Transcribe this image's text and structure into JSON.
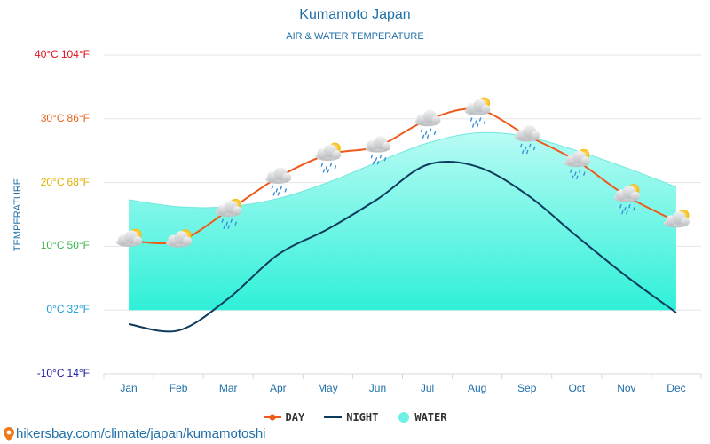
{
  "colors": {
    "day": "#ee5a1a",
    "night": "#0d3b5e",
    "water_top": "#b8fbf4",
    "water_bottom": "#2ff0d8",
    "water_edge": "#6ee8dd",
    "title": "#1f6fa8",
    "grid": "#e6e6e6"
  },
  "source": {
    "text": "hikersbay.com/climate/japan/kumamotoshi",
    "icon": "map-pin-icon"
  },
  "chart_data": {
    "type": "line",
    "title": "Kumamoto Japan",
    "subtitle": "AIR & WATER TEMPERATURE",
    "ylabel": "TEMPERATURE",
    "xlabel": "",
    "categories": [
      "Jan",
      "Feb",
      "Mar",
      "Apr",
      "May",
      "Jun",
      "Jul",
      "Aug",
      "Sep",
      "Oct",
      "Nov",
      "Dec"
    ],
    "ylim": [
      -10,
      40
    ],
    "grid": true,
    "legend_placement": "bottom",
    "y_ticks": [
      {
        "c": "40°C",
        "f": "104°F",
        "color": "#e0141e"
      },
      {
        "c": "30°C",
        "f": "86°F",
        "color": "#e8631a"
      },
      {
        "c": "20°C",
        "f": "68°F",
        "color": "#e0b000"
      },
      {
        "c": "10°C",
        "f": "50°F",
        "color": "#39b54a"
      },
      {
        "c": "0°C",
        "f": "32°F",
        "color": "#1aa0d8"
      },
      {
        "c": "-10°C",
        "f": "14°F",
        "color": "#1a1aa8"
      }
    ],
    "y_tick_values": [
      40,
      30,
      20,
      10,
      0,
      -10
    ],
    "series": [
      {
        "name": "DAY",
        "kind": "line",
        "values": [
          10.9,
          10.8,
          15.6,
          20.8,
          24.4,
          25.7,
          29.8,
          31.5,
          27.4,
          23.4,
          17.9,
          13.9
        ]
      },
      {
        "name": "NIGHT",
        "kind": "line",
        "values": [
          -2.2,
          -3.2,
          1.8,
          8.7,
          12.7,
          17.4,
          22.8,
          22.5,
          18.1,
          11.6,
          5.3,
          -0.4
        ]
      },
      {
        "name": "WATER",
        "kind": "area",
        "values": [
          17.3,
          16.2,
          16.2,
          17.5,
          20.0,
          23.2,
          26.2,
          27.8,
          27.2,
          25.0,
          22.3,
          19.3
        ]
      }
    ],
    "weather_icons": [
      "partly-cloudy-sun-icon",
      "partly-cloudy-sun-icon",
      "sun-cloud-rain-icon",
      "cloud-rain-icon",
      "sun-cloud-rain-icon",
      "cloud-rain-icon",
      "cloud-rain-icon",
      "sun-cloud-rain-icon",
      "cloud-rain-icon",
      "sun-cloud-rain-icon",
      "sun-cloud-rain-icon",
      "partly-cloudy-sun-icon"
    ]
  }
}
